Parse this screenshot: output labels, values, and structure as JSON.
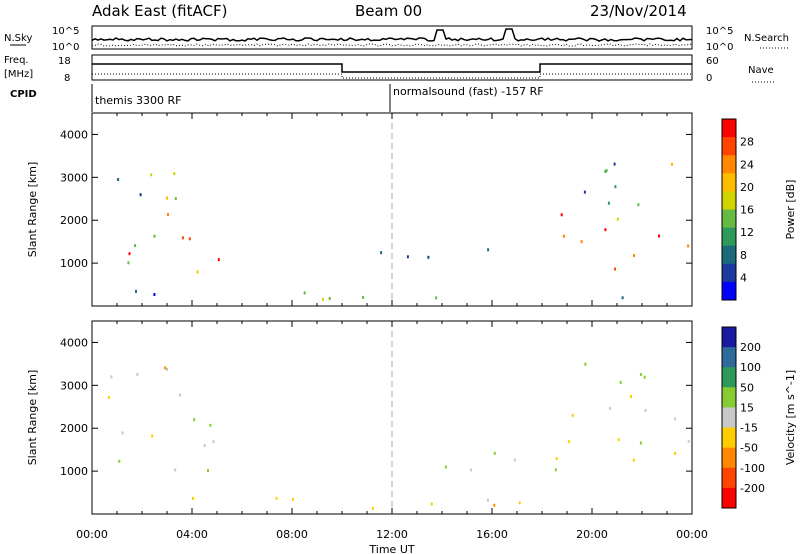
{
  "header": {
    "station": "Adak East (fitACF)",
    "beam": "Beam 00",
    "date": "23/Nov/2014"
  },
  "top_panels": {
    "nsky_label": "N.Sky",
    "nsky_ticks": [
      "10^5",
      "10^0"
    ],
    "nsearch_label": "N.Search",
    "nsearch_ticks": [
      "10^5",
      "10^0"
    ],
    "freq_label": "Freq.",
    "freq_unit": "[MHz]",
    "freq_ticks": [
      "18",
      "8"
    ],
    "nave_label": "Nave",
    "nave_ticks": [
      "60",
      "0"
    ],
    "cpid_label": "CPID",
    "cpid_segments": [
      "themis 3300 RF",
      "normalsound (fast) -157 RF"
    ]
  },
  "chart_data": [
    {
      "type": "heatmap",
      "panel": "power",
      "ylabel": "Slant Range [km]",
      "ylim": [
        0,
        4500
      ],
      "yticks": [
        "1000",
        "2000",
        "3000",
        "4000"
      ],
      "xlabel": "Time UT",
      "xlim_hours": [
        0,
        24
      ],
      "xticks": [
        "00:00",
        "04:00",
        "08:00",
        "12:00",
        "16:00",
        "20:00",
        "00:00"
      ],
      "colorbar": {
        "label": "Power [dB]",
        "ticks": [
          "28",
          "24",
          "20",
          "16",
          "12",
          "8",
          "4"
        ],
        "colors": [
          "#ff0000",
          "#ff4400",
          "#ff8800",
          "#ffbb00",
          "#d2d200",
          "#66bb44",
          "#2e9a5a",
          "#1a6a7a",
          "#1a3aa0",
          "#0000ff"
        ]
      },
      "scatter_regions": [
        {
          "t0": 0.0,
          "t1": 5.2,
          "r0": 800,
          "r1": 2400,
          "value_db": 22
        },
        {
          "t0": 0.0,
          "t1": 4.5,
          "r0": 2400,
          "r1": 3600,
          "value_db": 14
        },
        {
          "t0": 10.0,
          "t1": 18.0,
          "r0": 1000,
          "r1": 1500,
          "value_db": 10
        },
        {
          "t0": 18.5,
          "t1": 24.0,
          "r0": 800,
          "r1": 2300,
          "value_db": 24
        },
        {
          "t0": 18.5,
          "t1": 24.0,
          "r0": 2300,
          "r1": 3600,
          "value_db": 12
        },
        {
          "t0": 0.0,
          "t1": 24.0,
          "r0": 100,
          "r1": 400,
          "value_db": 8
        }
      ]
    },
    {
      "type": "heatmap",
      "panel": "velocity",
      "ylabel": "Slant Range [km]",
      "ylim": [
        0,
        4500
      ],
      "yticks": [
        "1000",
        "2000",
        "3000",
        "4000"
      ],
      "xlabel": "Time UT",
      "xlim_hours": [
        0,
        24
      ],
      "xticks": [
        "00:00",
        "04:00",
        "08:00",
        "12:00",
        "16:00",
        "20:00",
        "00:00"
      ],
      "colorbar": {
        "label": "Velocity [m s^-1]",
        "ticks": [
          "200",
          "100",
          "50",
          "15",
          "-15",
          "-50",
          "-100",
          "-200"
        ],
        "colors": [
          "#1a1aa0",
          "#2e6a9a",
          "#2e9a5a",
          "#88cc33",
          "#c8c8c8",
          "#ffcc00",
          "#ff8800",
          "#ff4400",
          "#ff0000"
        ]
      },
      "scatter_regions": [
        {
          "t0": 0.0,
          "t1": 5.2,
          "r0": 800,
          "r1": 2400,
          "value_ms": 0
        },
        {
          "t0": 0.0,
          "t1": 4.5,
          "r0": 2400,
          "r1": 3600,
          "value_ms": -40
        },
        {
          "t0": 10.0,
          "t1": 18.0,
          "r0": 1000,
          "r1": 1500,
          "value_ms": 30
        },
        {
          "t0": 18.5,
          "t1": 24.0,
          "r0": 800,
          "r1": 2300,
          "value_ms": 0
        },
        {
          "t0": 18.5,
          "t1": 24.0,
          "r0": 2300,
          "r1": 3600,
          "value_ms": 20
        },
        {
          "t0": 0.0,
          "t1": 24.0,
          "r0": 100,
          "r1": 400,
          "value_ms": -60
        }
      ]
    }
  ]
}
